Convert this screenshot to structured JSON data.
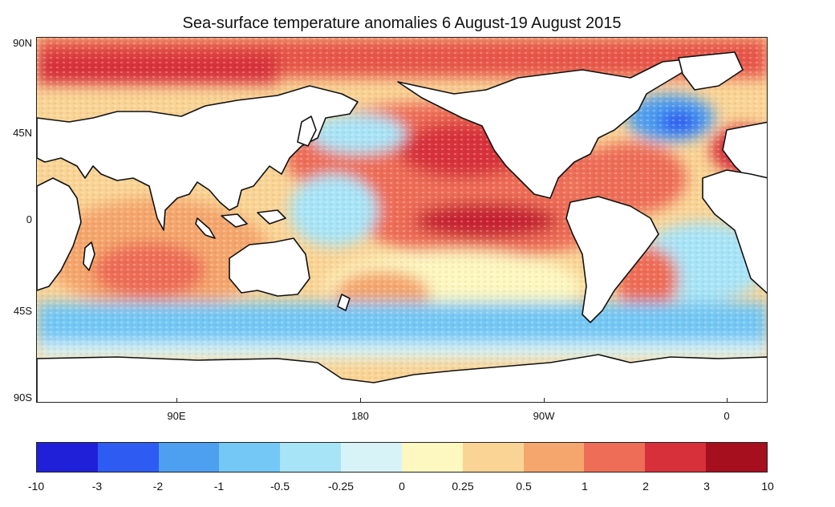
{
  "map": {
    "title": "Sea-surface temperature anomalies 6 August-19 August 2015",
    "latitude_labels": [
      "90N",
      "45N",
      "0",
      "45S",
      "90S"
    ],
    "longitude_labels": [
      "90E",
      "180",
      "90W",
      "0"
    ]
  },
  "colorbar": {
    "colors": [
      "#2020d8",
      "#2e5cf2",
      "#4d9ff0",
      "#74c8f5",
      "#a8e4f7",
      "#d8f3f8",
      "#fdf7c0",
      "#fad495",
      "#f5a66c",
      "#ee6d56",
      "#d8303a",
      "#a50f1e"
    ],
    "tick_labels": [
      "-10",
      "-3",
      "-2",
      "-1",
      "-0.5",
      "-0.25",
      "0",
      "0.25",
      "0.5",
      "1",
      "2",
      "3",
      "10"
    ]
  }
}
